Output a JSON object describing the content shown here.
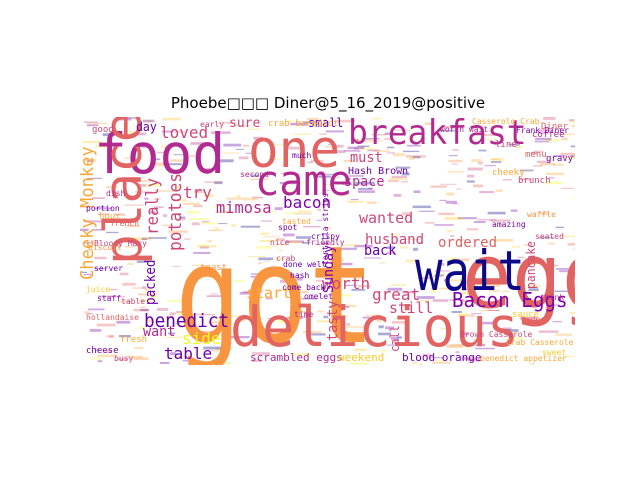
{
  "title": "Phoebe□□□ Diner@5_16_2019@positive",
  "palette": [
    "#f89540",
    "#e16462",
    "#b12a90",
    "#6a00a8",
    "#0d0887",
    "#fca636",
    "#cc4778",
    "#7e03a8",
    "#f0f921",
    "#fdca26"
  ],
  "words": [
    {
      "text": "got",
      "color": "#f89540"
    },
    {
      "text": "egg",
      "color": "#e16462"
    },
    {
      "text": "delicious",
      "color": "#e16462"
    },
    {
      "text": "food",
      "color": "#b12a90"
    },
    {
      "text": "place",
      "color": "#e16462"
    },
    {
      "text": "one",
      "color": "#e16462"
    },
    {
      "text": "came",
      "color": "#b12a90"
    },
    {
      "text": "breakfast",
      "color": "#b12a90"
    },
    {
      "text": "wait",
      "color": "#0d0887"
    },
    {
      "text": "Bacon Eggs",
      "color": "#7e03a8"
    },
    {
      "text": "benedict",
      "color": "#6a00a8"
    },
    {
      "text": "Cheeky Monkey",
      "color": "#fca636"
    },
    {
      "text": "potatoes",
      "color": "#cc4778"
    },
    {
      "text": "really",
      "color": "#cc4778"
    },
    {
      "text": "loved",
      "color": "#cc4778"
    },
    {
      "text": "mimosa",
      "color": "#b12a90"
    },
    {
      "text": "bacon",
      "color": "#7e03a8"
    },
    {
      "text": "try",
      "color": "#cc4778"
    },
    {
      "text": "worth",
      "color": "#cc4778"
    },
    {
      "text": "great",
      "color": "#cc4778"
    },
    {
      "text": "still",
      "color": "#cc4778"
    },
    {
      "text": "husband",
      "color": "#cc4778"
    },
    {
      "text": "wanted",
      "color": "#cc4778"
    },
    {
      "text": "ordered",
      "color": "#e16462"
    },
    {
      "text": "start",
      "color": "#fca636"
    },
    {
      "text": "table",
      "color": "#6a00a8"
    },
    {
      "text": "side",
      "color": "#f0f921"
    },
    {
      "text": "want",
      "color": "#b12a90"
    },
    {
      "text": "packed",
      "color": "#6a00a8"
    },
    {
      "text": "Sunday",
      "color": "#7e03a8"
    },
    {
      "text": "tasty",
      "color": "#cc4778"
    },
    {
      "text": "back",
      "color": "#6a00a8"
    },
    {
      "text": "space",
      "color": "#b12a90"
    },
    {
      "text": "must",
      "color": "#cc4778"
    },
    {
      "text": "sure",
      "color": "#cc4778"
    },
    {
      "text": "small",
      "color": "#6a00a8"
    },
    {
      "text": "day",
      "color": "#6a00a8"
    },
    {
      "text": "pancake",
      "color": "#cc4778"
    },
    {
      "text": "call",
      "color": "#cc4778"
    },
    {
      "text": "scrambled eggs",
      "color": "#b12a90"
    },
    {
      "text": "weekend",
      "color": "#fdca26"
    },
    {
      "text": "blood orange",
      "color": "#6a00a8"
    },
    {
      "text": "Hash Brown",
      "color": "#6a00a8"
    },
    {
      "text": "crab benedict",
      "color": "#fca636"
    },
    {
      "text": "Brown Casserole",
      "color": "#cc4778"
    },
    {
      "text": "benedict appetizer",
      "color": "#fca636"
    },
    {
      "text": "tortilla strips",
      "color": "#7e03a8"
    },
    {
      "text": "done well",
      "color": "#6a00a8"
    },
    {
      "text": "good",
      "color": "#cc4778"
    },
    {
      "text": "coffee",
      "color": "#b12a90"
    },
    {
      "text": "hour",
      "color": "#fca636"
    },
    {
      "text": "menu",
      "color": "#e16462"
    },
    {
      "text": "crispy",
      "color": "#6a00a8"
    },
    {
      "text": "brunch",
      "color": "#cc4778"
    },
    {
      "text": "sauce",
      "color": "#fdca26"
    },
    {
      "text": "staff",
      "color": "#7e03a8"
    },
    {
      "text": "friendly",
      "color": "#b12a90"
    },
    {
      "text": "toast",
      "color": "#f89540"
    },
    {
      "text": "crab",
      "color": "#cc4778"
    },
    {
      "text": "cheese",
      "color": "#6a00a8"
    },
    {
      "text": "cheeky",
      "color": "#fca636"
    },
    {
      "text": "hollandaise",
      "color": "#e16462"
    },
    {
      "text": "second",
      "color": "#b12a90"
    },
    {
      "text": "spot",
      "color": "#7e03a8"
    },
    {
      "text": "line",
      "color": "#cc4778"
    },
    {
      "text": "fresh",
      "color": "#fca636"
    },
    {
      "text": "hash",
      "color": "#6a00a8"
    },
    {
      "text": "order",
      "color": "#e16462"
    },
    {
      "text": "juice",
      "color": "#fdca26"
    },
    {
      "text": "dish",
      "color": "#b12a90"
    },
    {
      "text": "busy",
      "color": "#cc4778"
    },
    {
      "text": "omelet",
      "color": "#7e03a8"
    },
    {
      "text": "waffle",
      "color": "#f89540"
    },
    {
      "text": "server",
      "color": "#6a00a8"
    },
    {
      "text": "early",
      "color": "#cc4778"
    },
    {
      "text": "time",
      "color": "#b12a90"
    },
    {
      "text": "tasted",
      "color": "#fca636"
    },
    {
      "text": "french",
      "color": "#e16462"
    },
    {
      "text": "amazing",
      "color": "#7e03a8"
    },
    {
      "text": "seated",
      "color": "#cc4778"
    },
    {
      "text": "portion",
      "color": "#6a00a8"
    },
    {
      "text": "sweet",
      "color": "#fdca26"
    },
    {
      "text": "think",
      "color": "#b12a90"
    },
    {
      "text": "table",
      "color": "#cc4778"
    },
    {
      "text": "biscuit",
      "color": "#f89540"
    },
    {
      "text": "gravy",
      "color": "#7e03a8"
    },
    {
      "text": "Diner",
      "color": "#e16462"
    },
    {
      "text": "Casserole Crab",
      "color": "#fca636"
    },
    {
      "text": "Crab Casserole",
      "color": "#fca636"
    },
    {
      "text": "much",
      "color": "#6a00a8"
    },
    {
      "text": "nice",
      "color": "#cc4778"
    },
    {
      "text": "worth wait",
      "color": "#b12a90"
    },
    {
      "text": "Frank Diner",
      "color": "#7e03a8"
    },
    {
      "text": "Bloody Mary",
      "color": "#cc4778"
    },
    {
      "text": "come back",
      "color": "#6a00a8"
    }
  ]
}
